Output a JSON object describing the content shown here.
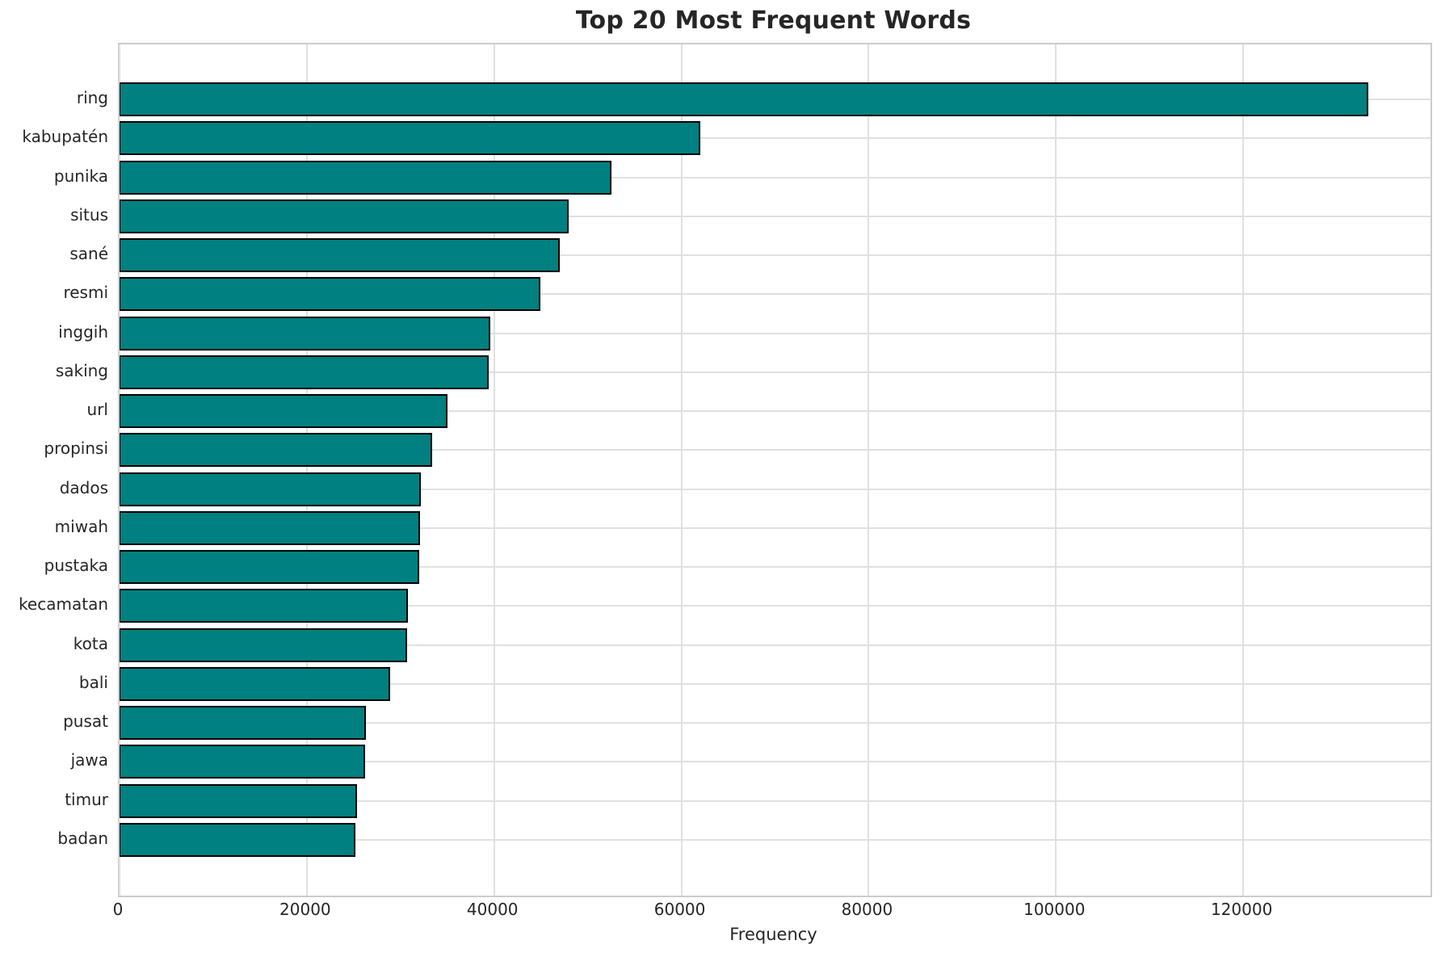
{
  "chart_data": {
    "type": "bar",
    "orientation": "horizontal",
    "title": "Top 20 Most Frequent Words",
    "xlabel": "Frequency",
    "ylabel": "",
    "categories": [
      "ring",
      "kabupatén",
      "punika",
      "situs",
      "sané",
      "resmi",
      "inggih",
      "saking",
      "url",
      "propinsi",
      "dados",
      "miwah",
      "pustaka",
      "kecamatan",
      "kota",
      "bali",
      "pusat",
      "jawa",
      "timur",
      "badan"
    ],
    "values": [
      133400,
      62000,
      52500,
      48000,
      47000,
      44900,
      39600,
      39400,
      35000,
      33400,
      32200,
      32100,
      32000,
      30800,
      30700,
      28900,
      26300,
      26250,
      25400,
      25200
    ],
    "xlim": [
      0,
      140000
    ],
    "xticks": [
      0,
      20000,
      40000,
      60000,
      80000,
      100000,
      120000
    ],
    "xtick_labels": [
      "0",
      "20000",
      "40000",
      "60000",
      "80000",
      "100000",
      "120000"
    ],
    "grid": true,
    "grid_axes": "both",
    "legend": null,
    "bar_color": "#008080",
    "bar_edge_color": "#000000",
    "background_color": "#ffffff",
    "text_color": "#262626"
  }
}
